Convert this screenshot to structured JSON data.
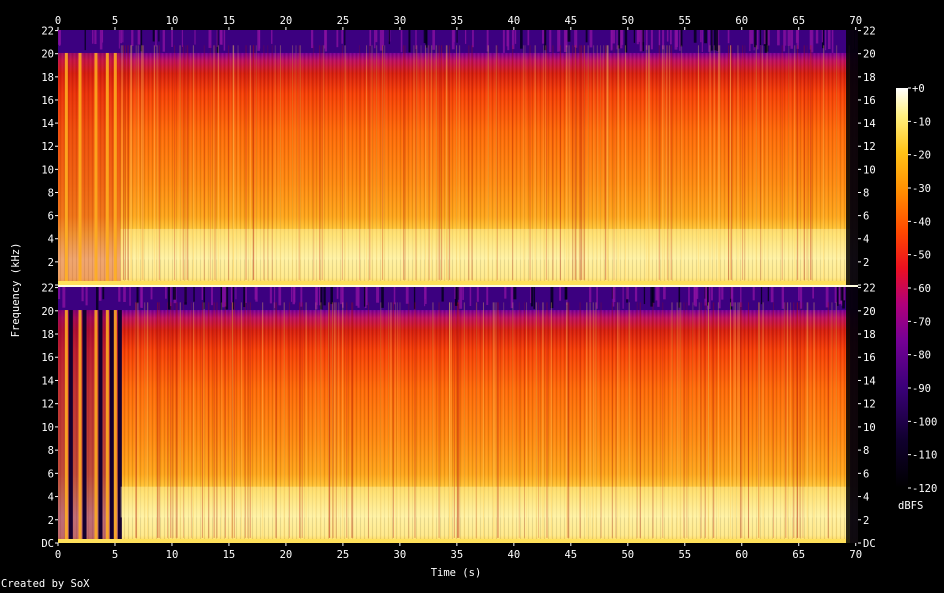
{
  "chart_data": {
    "type": "heatmap",
    "subtype": "spectrogram",
    "xlabel": "Time (s)",
    "ylabel": "Frequency (kHz)",
    "x_range": [
      0,
      70.2
    ],
    "x_ticks": [
      0,
      5,
      10,
      15,
      20,
      25,
      30,
      35,
      40,
      45,
      50,
      55,
      60,
      65,
      70
    ],
    "y_range_khz": [
      0,
      22.05
    ],
    "y_ticks": [
      "DC",
      "2",
      "4",
      "6",
      "8",
      "10",
      "12",
      "14",
      "16",
      "18",
      "20",
      "22"
    ],
    "channels": [
      {
        "channel": 1,
        "position": "top"
      },
      {
        "channel": 2,
        "position": "bottom"
      }
    ],
    "colorbar": {
      "unit": "dBFS",
      "range": [
        -120,
        0
      ],
      "ticks": [
        "+0",
        "-10",
        "-20",
        "-30",
        "-40",
        "-50",
        "-60",
        "-70",
        "-80",
        "-90",
        "-100",
        "-110",
        "-120"
      ],
      "colormap": [
        "#000000",
        "#1a0048",
        "#4a0092",
        "#8a0086",
        "#c4003a",
        "#ff1c00",
        "#ff6a00",
        "#ffae00",
        "#ffe640",
        "#ffffe6"
      ]
    },
    "approx_levels": {
      "low_band_0_5khz_dbfs": -25,
      "mid_band_5_18khz_dbfs": -45,
      "band_20_22khz_dbfs": -85,
      "sound_start_s": 5.5,
      "sound_end_s": 69.5
    }
  },
  "credit": "Created by SoX"
}
